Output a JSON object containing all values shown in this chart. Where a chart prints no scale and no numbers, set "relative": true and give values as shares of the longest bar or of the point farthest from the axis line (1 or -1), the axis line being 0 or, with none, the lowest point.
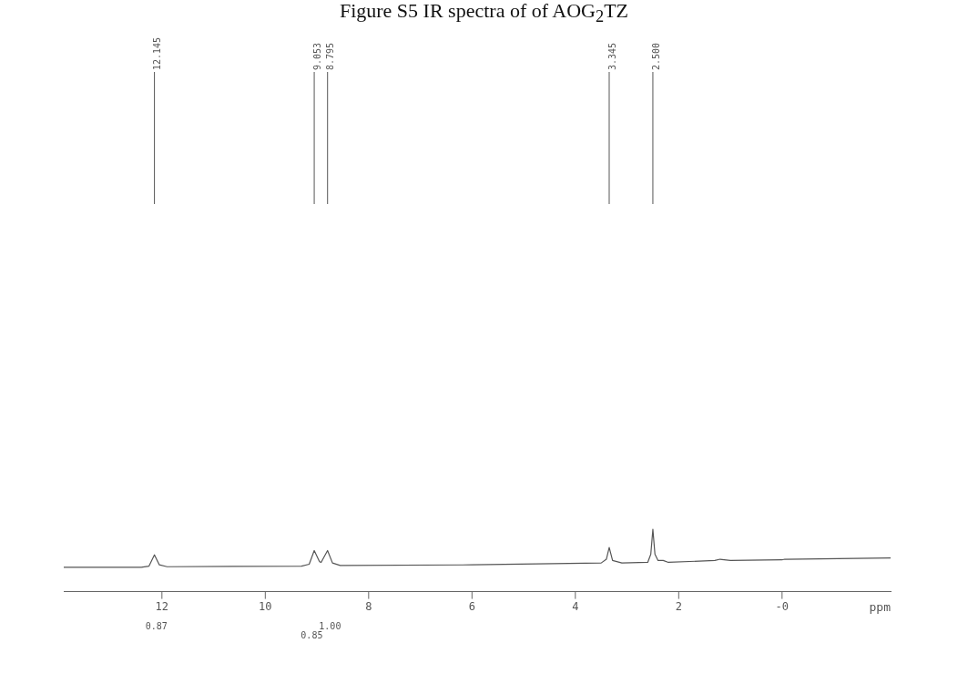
{
  "chart_data": {
    "type": "line",
    "title": "Figure S5 IR spectra of of AOG$_{2}$TZ",
    "xlabel": "ppm",
    "relative": true,
    "grid": false,
    "legend": false,
    "marker": "none",
    "line_style": "solid",
    "xlim": [
      13.9,
      -2.1
    ],
    "xticks": [
      12,
      10,
      8,
      6,
      4,
      2,
      {
        "value": 0,
        "label": "-0"
      }
    ],
    "series": [
      {
        "color": "#555555",
        "x": [
          13.9,
          12.4,
          12.25,
          12.145,
          12.05,
          11.9,
          9.3,
          9.15,
          9.053,
          8.95,
          8.92,
          8.795,
          8.7,
          8.55,
          6,
          3.5,
          3.4,
          3.345,
          3.28,
          3.1,
          2.6,
          2.54,
          2.5,
          2.46,
          2.4,
          2.3,
          2.2,
          1.3,
          1.2,
          1.0,
          0,
          -0.05,
          -2.1
        ],
        "values": [
          0.39,
          0.39,
          0.41,
          0.59,
          0.43,
          0.4,
          0.41,
          0.44,
          0.66,
          0.48,
          0.47,
          0.66,
          0.46,
          0.42,
          0.43,
          0.46,
          0.52,
          0.71,
          0.5,
          0.46,
          0.47,
          0.6,
          1,
          0.6,
          0.5,
          0.5,
          0.47,
          0.5,
          0.52,
          0.5,
          0.51,
          0.52,
          0.54
        ]
      }
    ],
    "ref_lines": [
      {
        "axis": "x",
        "value": 12.145,
        "label": "12.145",
        "color": "#555555"
      },
      {
        "axis": "x",
        "value": 9.053,
        "label": "9.053",
        "color": "#555555"
      },
      {
        "axis": "x",
        "value": 8.795,
        "label": "8.795",
        "color": "#555555"
      },
      {
        "axis": "x",
        "value": 3.345,
        "label": "3.345",
        "color": "#555555"
      },
      {
        "axis": "x",
        "value": 2.5,
        "label": "2.500",
        "color": "#555555"
      }
    ],
    "annotations": [
      "0.87",
      "0.85",
      "1.00"
    ]
  }
}
